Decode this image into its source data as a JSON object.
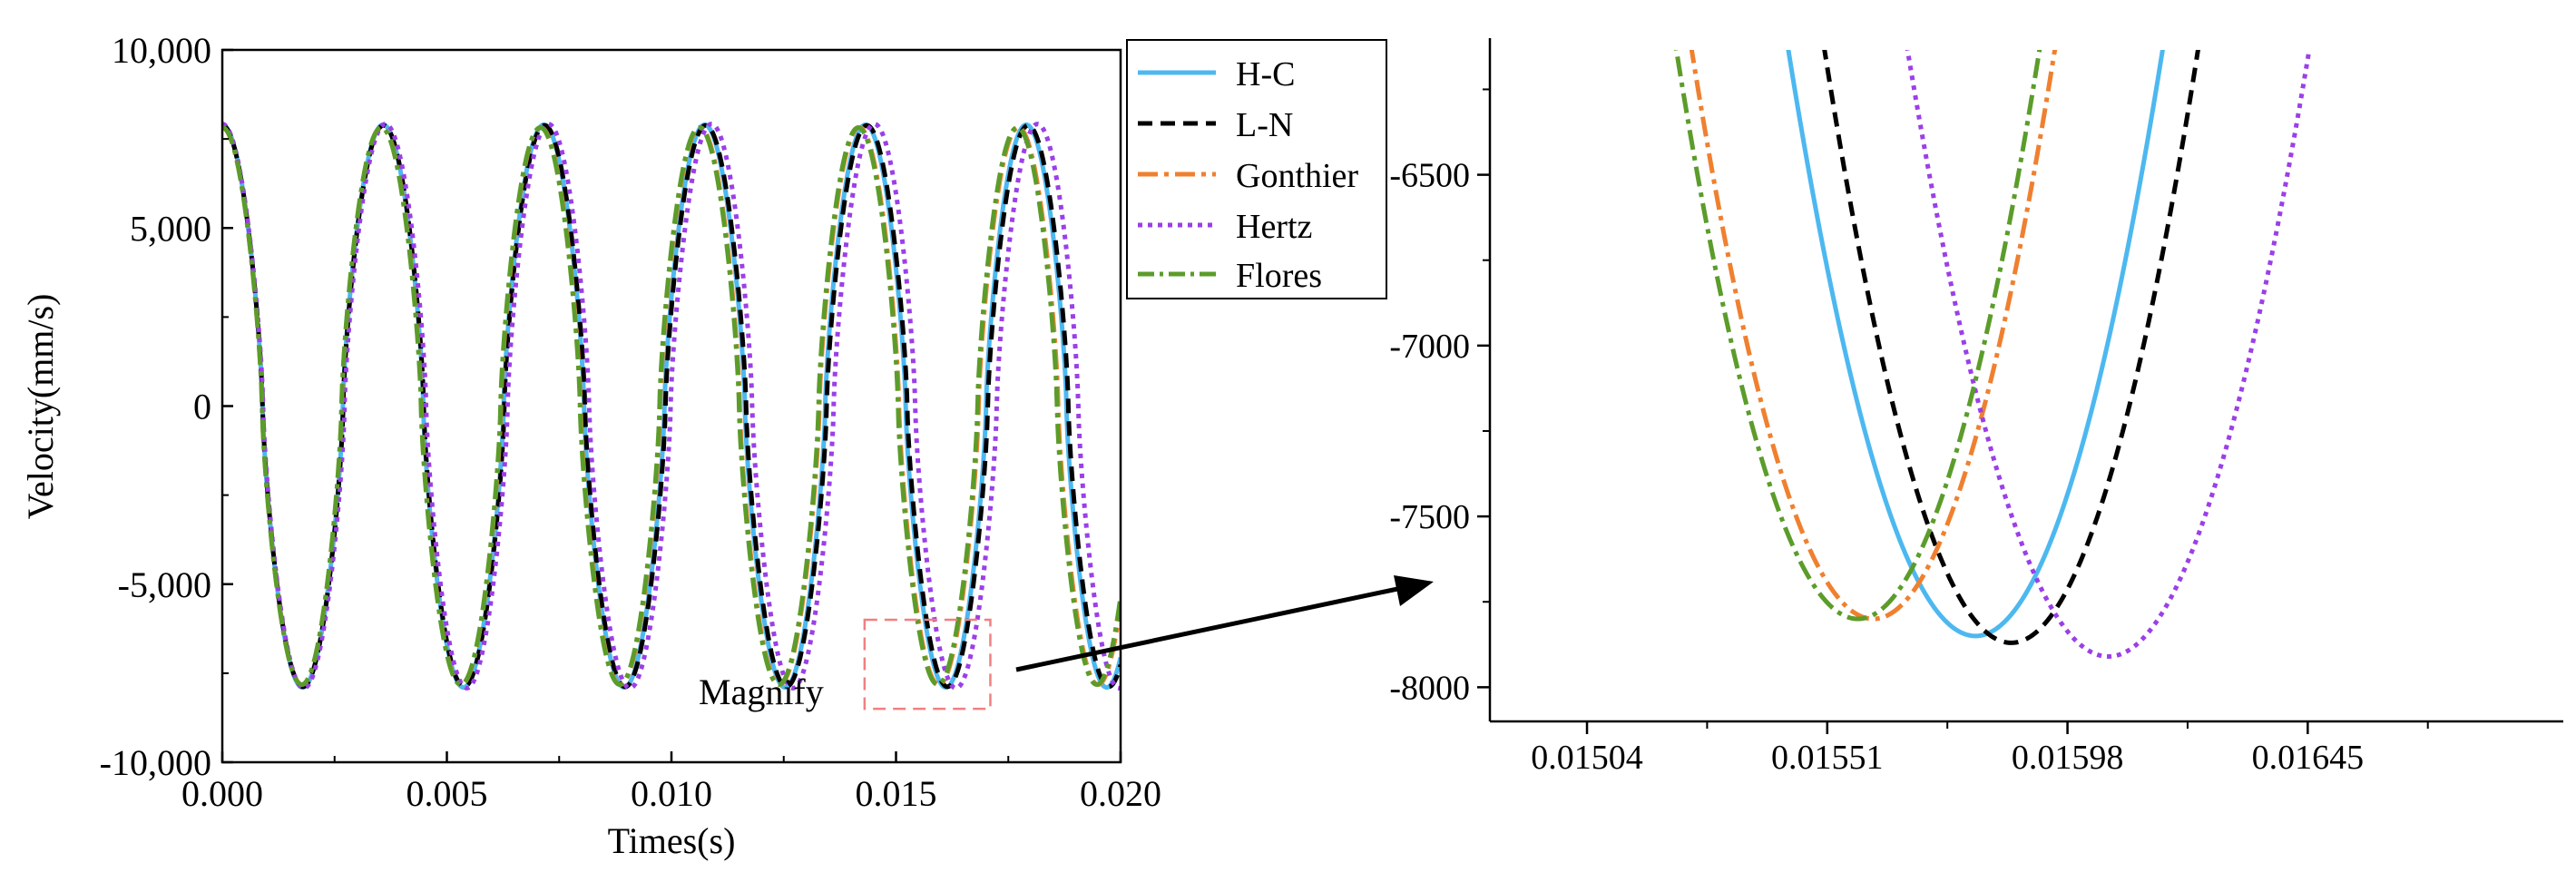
{
  "chart_data": [
    {
      "id": "main",
      "type": "line",
      "xlabel": "Times(s)",
      "ylabel": "Velocity(mm/s)",
      "xlim": [
        0,
        0.02
      ],
      "ylim": [
        -10000,
        10000
      ],
      "xticks": [
        0,
        0.005,
        0.01,
        0.015,
        0.02
      ],
      "xtick_labels": [
        "0.000",
        "0.005",
        "0.010",
        "0.015",
        "0.020"
      ],
      "yticks": [
        -10000,
        -5000,
        0,
        5000,
        10000
      ],
      "ytick_labels": [
        "-10,000",
        "-5,000",
        "0",
        "5,000",
        "10,000"
      ],
      "annotation": "Magnify",
      "magnify_region": {
        "x": [
          0.0143,
          0.0171
        ],
        "y": [
          -8500,
          -6000
        ]
      },
      "series": [
        {
          "name": "H-C",
          "color": "#4db8f0",
          "dash": "solid",
          "period": 0.00358,
          "amplitude": 7900
        },
        {
          "name": "L-N",
          "color": "#000000",
          "dash": "dashed",
          "period": 0.003588,
          "amplitude": 7880
        },
        {
          "name": "Gonthier",
          "color": "#ef8030",
          "dash": "dashdot",
          "period": 0.003545,
          "amplitude": 7820
        },
        {
          "name": "Hertz",
          "color": "#9b3fe8",
          "dash": "dotted",
          "period": 0.00363,
          "amplitude": 7920
        },
        {
          "name": "Flores",
          "color": "#5b9c2a",
          "dash": "dashdot",
          "period": 0.00354,
          "amplitude": 7820
        }
      ]
    },
    {
      "id": "zoom",
      "type": "line",
      "xlim": [
        0.01485,
        0.01695
      ],
      "ylim": [
        -8100,
        -6100
      ],
      "xticks": [
        0.01504,
        0.01551,
        0.01598,
        0.01645
      ],
      "xtick_labels": [
        "0.01504",
        "0.01551",
        "0.01598",
        "0.01645"
      ],
      "yticks": [
        -6500,
        -7000,
        -7500,
        -8000
      ],
      "ytick_labels": [
        "-6500",
        "-7000",
        "-7500",
        "-8000"
      ],
      "series": [
        {
          "name": "H-C",
          "color": "#4db8f0",
          "dash": "solid",
          "min_x": 0.0158,
          "min_y": -7850,
          "curvature": 12800000000.0
        },
        {
          "name": "L-N",
          "color": "#000000",
          "dash": "dashed",
          "min_x": 0.01587,
          "min_y": -7870,
          "curvature": 13000000000.0
        },
        {
          "name": "Gonthier",
          "color": "#ef8030",
          "dash": "dashdot",
          "min_x": 0.0156,
          "min_y": -7800,
          "curvature": 13200000000.0
        },
        {
          "name": "Hertz",
          "color": "#9b3fe8",
          "dash": "dotted",
          "min_x": 0.01606,
          "min_y": -7910,
          "curvature": 11500000000.0
        },
        {
          "name": "Flores",
          "color": "#5b9c2a",
          "dash": "dashdot",
          "min_x": 0.01557,
          "min_y": -7800,
          "curvature": 13200000000.0
        }
      ]
    }
  ],
  "legend": {
    "entries": [
      {
        "label": "H-C",
        "color": "#4db8f0",
        "dash": "solid"
      },
      {
        "label": "L-N",
        "color": "#000000",
        "dash": "dashed"
      },
      {
        "label": "Gonthier",
        "color": "#ef8030",
        "dash": "dashdot"
      },
      {
        "label": "Hertz",
        "color": "#9b3fe8",
        "dash": "dotted"
      },
      {
        "label": "Flores",
        "color": "#5b9c2a",
        "dash": "dashdot"
      }
    ]
  }
}
